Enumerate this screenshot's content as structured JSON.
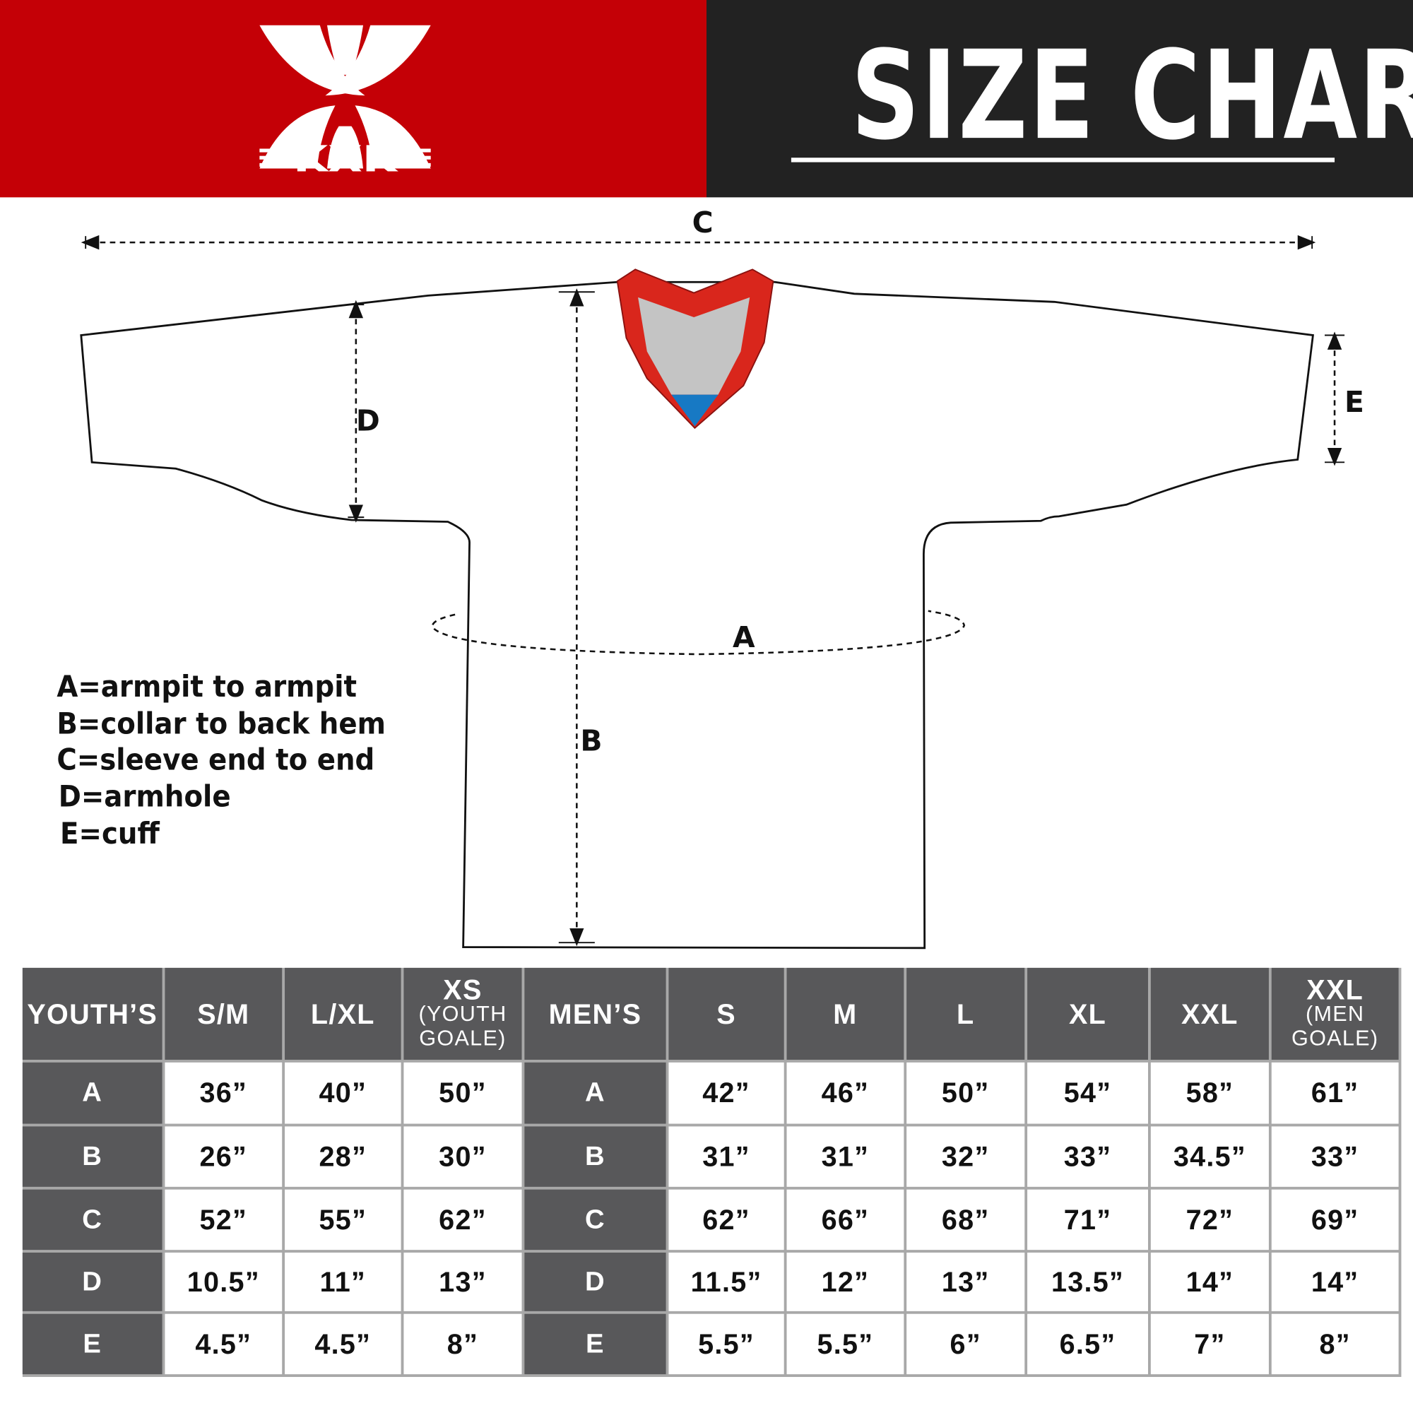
{
  "header": {
    "brand": "KXK",
    "title": "SIZE CHART",
    "brand_color": "#c40006",
    "title_bg": "#222222"
  },
  "diagram": {
    "labels": {
      "A": "A",
      "B": "B",
      "C": "C",
      "D": "D",
      "E": "E"
    }
  },
  "legend": [
    "A=armpit to armpit",
    "B=collar to back hem",
    "C=sleeve end to end",
    "D=armhole",
    "E=cuff"
  ],
  "table": {
    "youth_header": "YOUTH’S",
    "youth_sizes": [
      {
        "main": "S/M"
      },
      {
        "main": "L/XL"
      },
      {
        "main": "XS",
        "sub1": "(YOUTH",
        "sub2": "GOALE)"
      }
    ],
    "men_header": "MEN’S",
    "men_sizes": [
      {
        "main": "S"
      },
      {
        "main": "M"
      },
      {
        "main": "L"
      },
      {
        "main": "XL"
      },
      {
        "main": "XXL"
      },
      {
        "main": "XXL",
        "sub1": "(MEN",
        "sub2": "GOALE)"
      }
    ],
    "rows": [
      {
        "label": "A",
        "youth": [
          "36”",
          "40”",
          "50”"
        ],
        "men": [
          "42”",
          "46”",
          "50”",
          "54”",
          "58”",
          "61”"
        ]
      },
      {
        "label": "B",
        "youth": [
          "26”",
          "28”",
          "30”"
        ],
        "men": [
          "31”",
          "31”",
          "32”",
          "33”",
          "34.5”",
          "33”"
        ]
      },
      {
        "label": "C",
        "youth": [
          "52”",
          "55”",
          "62”"
        ],
        "men": [
          "62”",
          "66”",
          "68”",
          "71”",
          "72”",
          "69”"
        ]
      },
      {
        "label": "D",
        "youth": [
          "10.5”",
          "11”",
          "13”"
        ],
        "men": [
          "11.5”",
          "12”",
          "13”",
          "13.5”",
          "14”",
          "14”"
        ]
      },
      {
        "label": "E",
        "youth": [
          "4.5”",
          "4.5”",
          "8”"
        ],
        "men": [
          "5.5”",
          "5.5”",
          "6”",
          "6.5”",
          "7”",
          "8”"
        ]
      }
    ]
  }
}
